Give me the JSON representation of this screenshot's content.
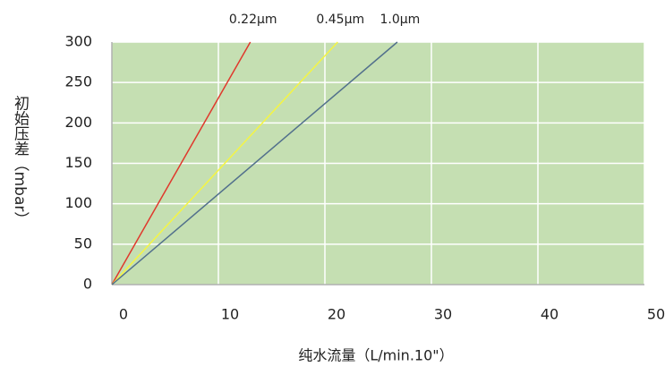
{
  "chart_data": {
    "type": "line",
    "x_label": "纯水流量（L/min.10\"）",
    "y_label": "初始压差（mbar）",
    "series": [
      {
        "name": "0.22μm",
        "color": "#e0382c",
        "x": [
          0,
          13
        ],
        "values": [
          0,
          300
        ]
      },
      {
        "name": "0.45μm",
        "color": "#f5f542",
        "x": [
          0,
          21.2
        ],
        "values": [
          0,
          300
        ]
      },
      {
        "name": "1.0μm",
        "color": "#52708c",
        "x": [
          0,
          26.8
        ],
        "values": [
          0,
          300
        ]
      }
    ],
    "xlim": [
      0,
      50
    ],
    "xticks": [
      0,
      10,
      20,
      30,
      40,
      50
    ],
    "ylim": [
      0,
      300
    ],
    "yticks": [
      0,
      50,
      100,
      150,
      200,
      250,
      300
    ],
    "grid": true,
    "background": "#c5dfb2"
  }
}
